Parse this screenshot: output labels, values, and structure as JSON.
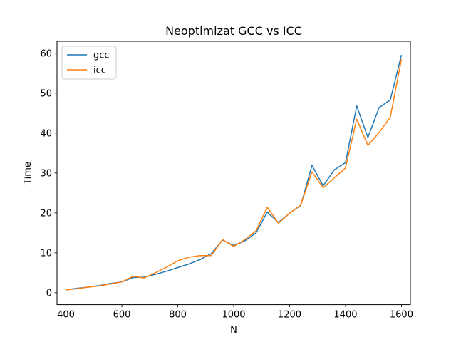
{
  "chart_data": {
    "type": "line",
    "title": "Neoptimizat GCC vs ICC",
    "xlabel": "N",
    "ylabel": "Time",
    "xlim": [
      368,
      1632
    ],
    "ylim": [
      -3,
      63
    ],
    "xticks": [
      400,
      600,
      800,
      1000,
      1200,
      1400,
      1600
    ],
    "yticks": [
      0,
      10,
      20,
      30,
      40,
      50,
      60
    ],
    "grid": false,
    "legend_position": "top-left",
    "x": [
      400,
      440,
      480,
      520,
      560,
      600,
      640,
      680,
      720,
      760,
      800,
      840,
      880,
      920,
      960,
      1000,
      1040,
      1080,
      1120,
      1160,
      1200,
      1240,
      1280,
      1320,
      1360,
      1400,
      1440,
      1480,
      1520,
      1560,
      1600
    ],
    "series": [
      {
        "name": "gcc",
        "color": "#1f77b4",
        "values": [
          0.7,
          1.1,
          1.4,
          1.8,
          2.3,
          2.7,
          3.8,
          3.9,
          4.6,
          5.4,
          6.3,
          7.2,
          8.3,
          9.8,
          13.2,
          11.8,
          13.0,
          15.0,
          20.2,
          17.6,
          19.9,
          21.9,
          31.9,
          26.8,
          30.8,
          32.6,
          46.8,
          38.9,
          46.4,
          48.3,
          59.6
        ]
      },
      {
        "name": "icc",
        "color": "#ff7f0e",
        "values": [
          0.7,
          1.0,
          1.4,
          1.7,
          2.2,
          2.7,
          4.1,
          3.7,
          5.0,
          6.4,
          8.0,
          8.9,
          9.3,
          9.3,
          13.3,
          11.6,
          13.3,
          15.5,
          21.4,
          17.4,
          19.9,
          22.0,
          30.3,
          26.3,
          28.8,
          31.3,
          43.5,
          36.9,
          40.1,
          44.0,
          58.5
        ]
      }
    ]
  }
}
